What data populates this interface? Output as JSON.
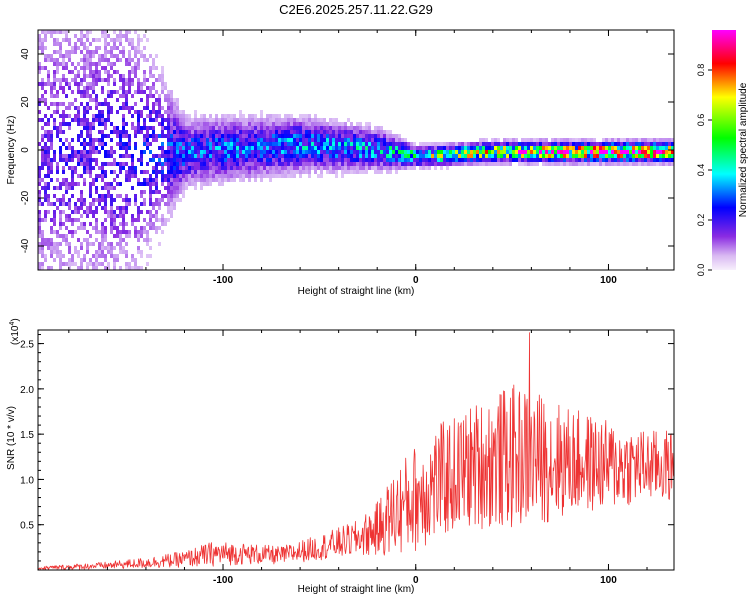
{
  "title": "C2E6.2025.257.11.22.G29",
  "colors": {
    "line": "#ee3333",
    "axis": "#000000",
    "background": "#ffffff"
  },
  "chart_data": [
    {
      "type": "heatmap",
      "name": "spectrogram",
      "xlabel": "Height of straight line (km)",
      "ylabel": "Frequency (Hz)",
      "xlim": [
        -196,
        134
      ],
      "ylim": [
        -50,
        50
      ],
      "xticks": [
        -100,
        0,
        100
      ],
      "yticks": [
        -40,
        -20,
        0,
        20,
        40
      ],
      "colorbar": {
        "label": "Normalized spectral amplitude",
        "range": [
          0,
          0.96
        ],
        "ticks": [
          0.0,
          0.2,
          0.4,
          0.6,
          0.8
        ],
        "colormap": [
          "#f2e6fb",
          "#8a2be2",
          "#0000ff",
          "#00ffff",
          "#00ff00",
          "#ffff00",
          "#ff0000",
          "#ff00ff"
        ]
      },
      "ridge": [
        {
          "x": -196,
          "freq": 0,
          "amplitude": 0.18,
          "spread": 45
        },
        {
          "x": -150,
          "freq": 0,
          "amplitude": 0.22,
          "spread": 40
        },
        {
          "x": -120,
          "freq": 0,
          "amplitude": 0.3,
          "spread": 10
        },
        {
          "x": -60,
          "freq": 3,
          "amplitude": 0.35,
          "spread": 8
        },
        {
          "x": -20,
          "freq": 1,
          "amplitude": 0.38,
          "spread": 6
        },
        {
          "x": 0,
          "freq": -2,
          "amplitude": 0.5,
          "spread": 3
        },
        {
          "x": 40,
          "freq": 0,
          "amplitude": 0.72,
          "spread": 3
        },
        {
          "x": 100,
          "freq": 0,
          "amplitude": 0.88,
          "spread": 3
        },
        {
          "x": 134,
          "freq": 0,
          "amplitude": 0.9,
          "spread": 3
        }
      ]
    },
    {
      "type": "line",
      "name": "snr",
      "xlabel": "Height of straight line (km)",
      "ylabel": "SNR (10 * v/v)",
      "yscale_label": "(x10",
      "yscale_exp": "4",
      "xlim": [
        -196,
        134
      ],
      "ylim": [
        0,
        2.65
      ],
      "xticks": [
        -100,
        0,
        100
      ],
      "yticks": [
        0.5,
        1.0,
        1.5,
        2.0,
        2.5
      ],
      "ytick_labels": [
        "0.5",
        "1.0",
        "1.5",
        "2.0",
        "2.5"
      ],
      "envelope": {
        "x": [
          -196,
          -160,
          -140,
          -120,
          -105,
          -90,
          -70,
          -50,
          -30,
          -20,
          -10,
          0,
          10,
          20,
          30,
          40,
          50,
          60,
          70,
          80,
          90,
          100,
          110,
          120,
          134
        ],
        "mean": [
          0.02,
          0.05,
          0.08,
          0.12,
          0.18,
          0.18,
          0.16,
          0.25,
          0.35,
          0.45,
          0.65,
          0.8,
          0.95,
          1.05,
          1.15,
          1.2,
          1.25,
          1.25,
          1.22,
          1.2,
          1.18,
          1.15,
          1.15,
          1.15,
          1.15
        ],
        "spread": [
          0.02,
          0.04,
          0.06,
          0.09,
          0.14,
          0.12,
          0.1,
          0.14,
          0.2,
          0.3,
          0.5,
          0.6,
          0.65,
          0.65,
          0.7,
          0.75,
          0.8,
          0.75,
          0.7,
          0.6,
          0.55,
          0.5,
          0.45,
          0.4,
          0.4
        ]
      },
      "peak": {
        "x": 59,
        "y": 2.62
      }
    }
  ]
}
